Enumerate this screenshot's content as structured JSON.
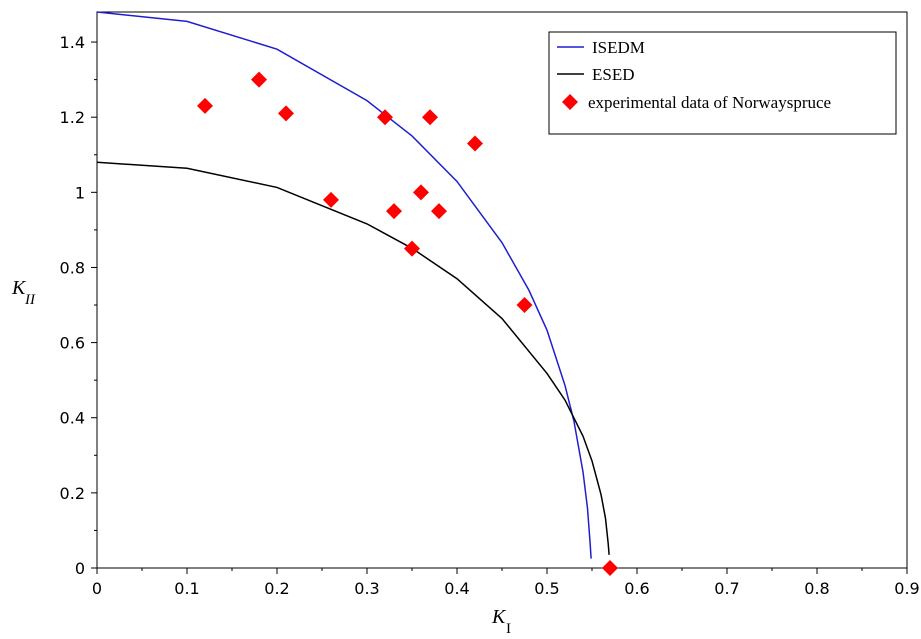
{
  "chart_data": {
    "type": "scatter",
    "xlabel": "K",
    "xlabel_sub": "I",
    "ylabel": "K",
    "ylabel_sub": "II",
    "xlim": [
      0,
      0.9
    ],
    "ylim": [
      0,
      1.48
    ],
    "xticks": [
      0,
      0.1,
      0.2,
      0.3,
      0.4,
      0.5,
      0.6,
      0.7,
      0.8,
      0.9
    ],
    "xtick_labels": [
      "0",
      "0.1",
      "0.2",
      "0.3",
      "0.4",
      "0.5",
      "0.6",
      "0.7",
      "0.8",
      "0.9"
    ],
    "yticks": [
      0,
      0.2,
      0.4,
      0.6,
      0.8,
      1,
      1.2,
      1.4
    ],
    "ytick_labels": [
      "0",
      "0.2",
      "0.4",
      "0.6",
      "0.8",
      "1",
      "1.2",
      "1.4"
    ],
    "grid": false,
    "legend_position": "top-right",
    "series": [
      {
        "name": "ISEDM",
        "kind": "line",
        "color": "#1f1fd0",
        "x": [
          0,
          0.1,
          0.2,
          0.3,
          0.35,
          0.4,
          0.45,
          0.48,
          0.5,
          0.52,
          0.53,
          0.54,
          0.545,
          0.548,
          0.549
        ],
        "y": [
          1.48,
          1.455,
          1.381,
          1.244,
          1.15,
          1.029,
          0.866,
          0.739,
          0.633,
          0.486,
          0.39,
          0.256,
          0.159,
          0.063,
          0.025
        ]
      },
      {
        "name": "ESED",
        "kind": "line",
        "color": "#000000",
        "x": [
          0,
          0.1,
          0.2,
          0.3,
          0.35,
          0.4,
          0.45,
          0.5,
          0.52,
          0.54,
          0.55,
          0.56,
          0.565,
          0.568,
          0.569
        ],
        "y": [
          1.08,
          1.064,
          1.013,
          0.916,
          0.851,
          0.77,
          0.664,
          0.518,
          0.447,
          0.351,
          0.285,
          0.196,
          0.132,
          0.065,
          0.035
        ]
      },
      {
        "name": "experimental data of Norwayspruce",
        "kind": "scatter",
        "marker": "diamond",
        "color": "#ff0000",
        "x": [
          0.12,
          0.18,
          0.21,
          0.26,
          0.32,
          0.33,
          0.35,
          0.36,
          0.37,
          0.38,
          0.42,
          0.475,
          0.57
        ],
        "y": [
          1.23,
          1.3,
          1.21,
          0.98,
          1.2,
          0.95,
          0.85,
          1.0,
          1.2,
          0.95,
          1.13,
          0.7,
          0.0
        ]
      }
    ]
  }
}
